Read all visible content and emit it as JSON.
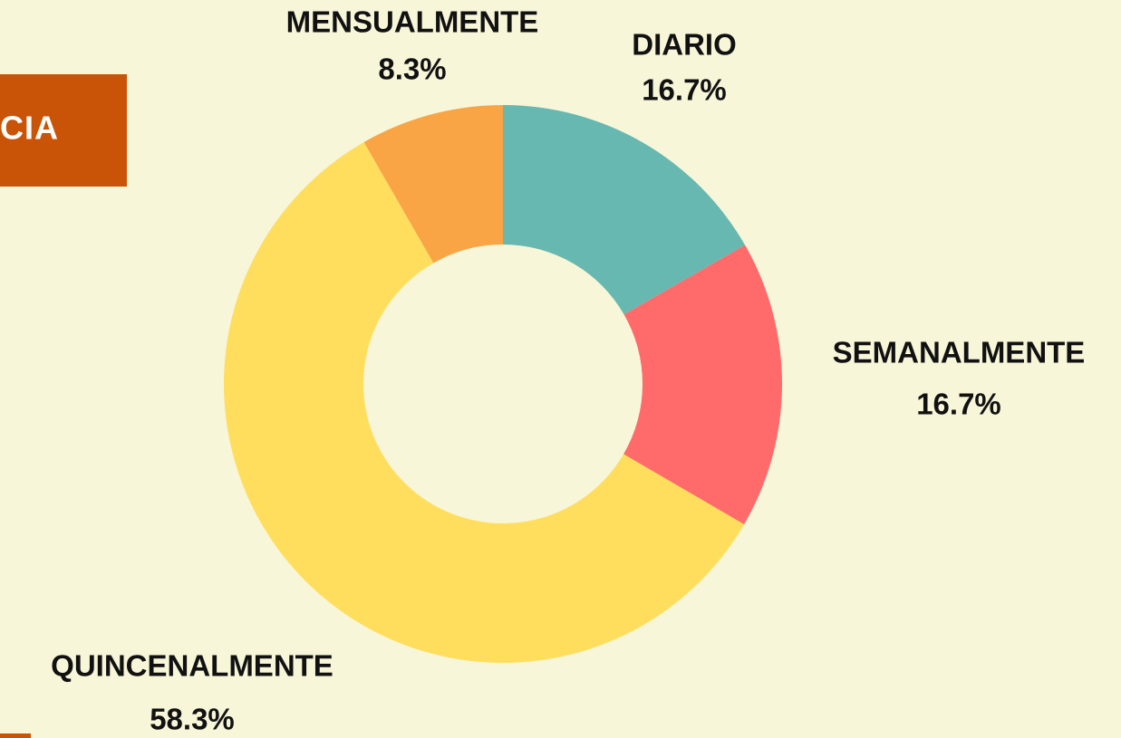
{
  "side_label": "CIA",
  "chart_data": {
    "type": "donut",
    "categories": [
      "DIARIO",
      "SEMANALMENTE",
      "QUINCENALMENTE",
      "MENSUALMENTE"
    ],
    "values": [
      16.7,
      16.7,
      58.3,
      8.3
    ],
    "value_labels": [
      "16.7%",
      "16.7%",
      "58.3%",
      "8.3%"
    ],
    "colors": [
      "#67b8b0",
      "#ff6b6b",
      "#ffde5e",
      "#f9a545"
    ]
  }
}
